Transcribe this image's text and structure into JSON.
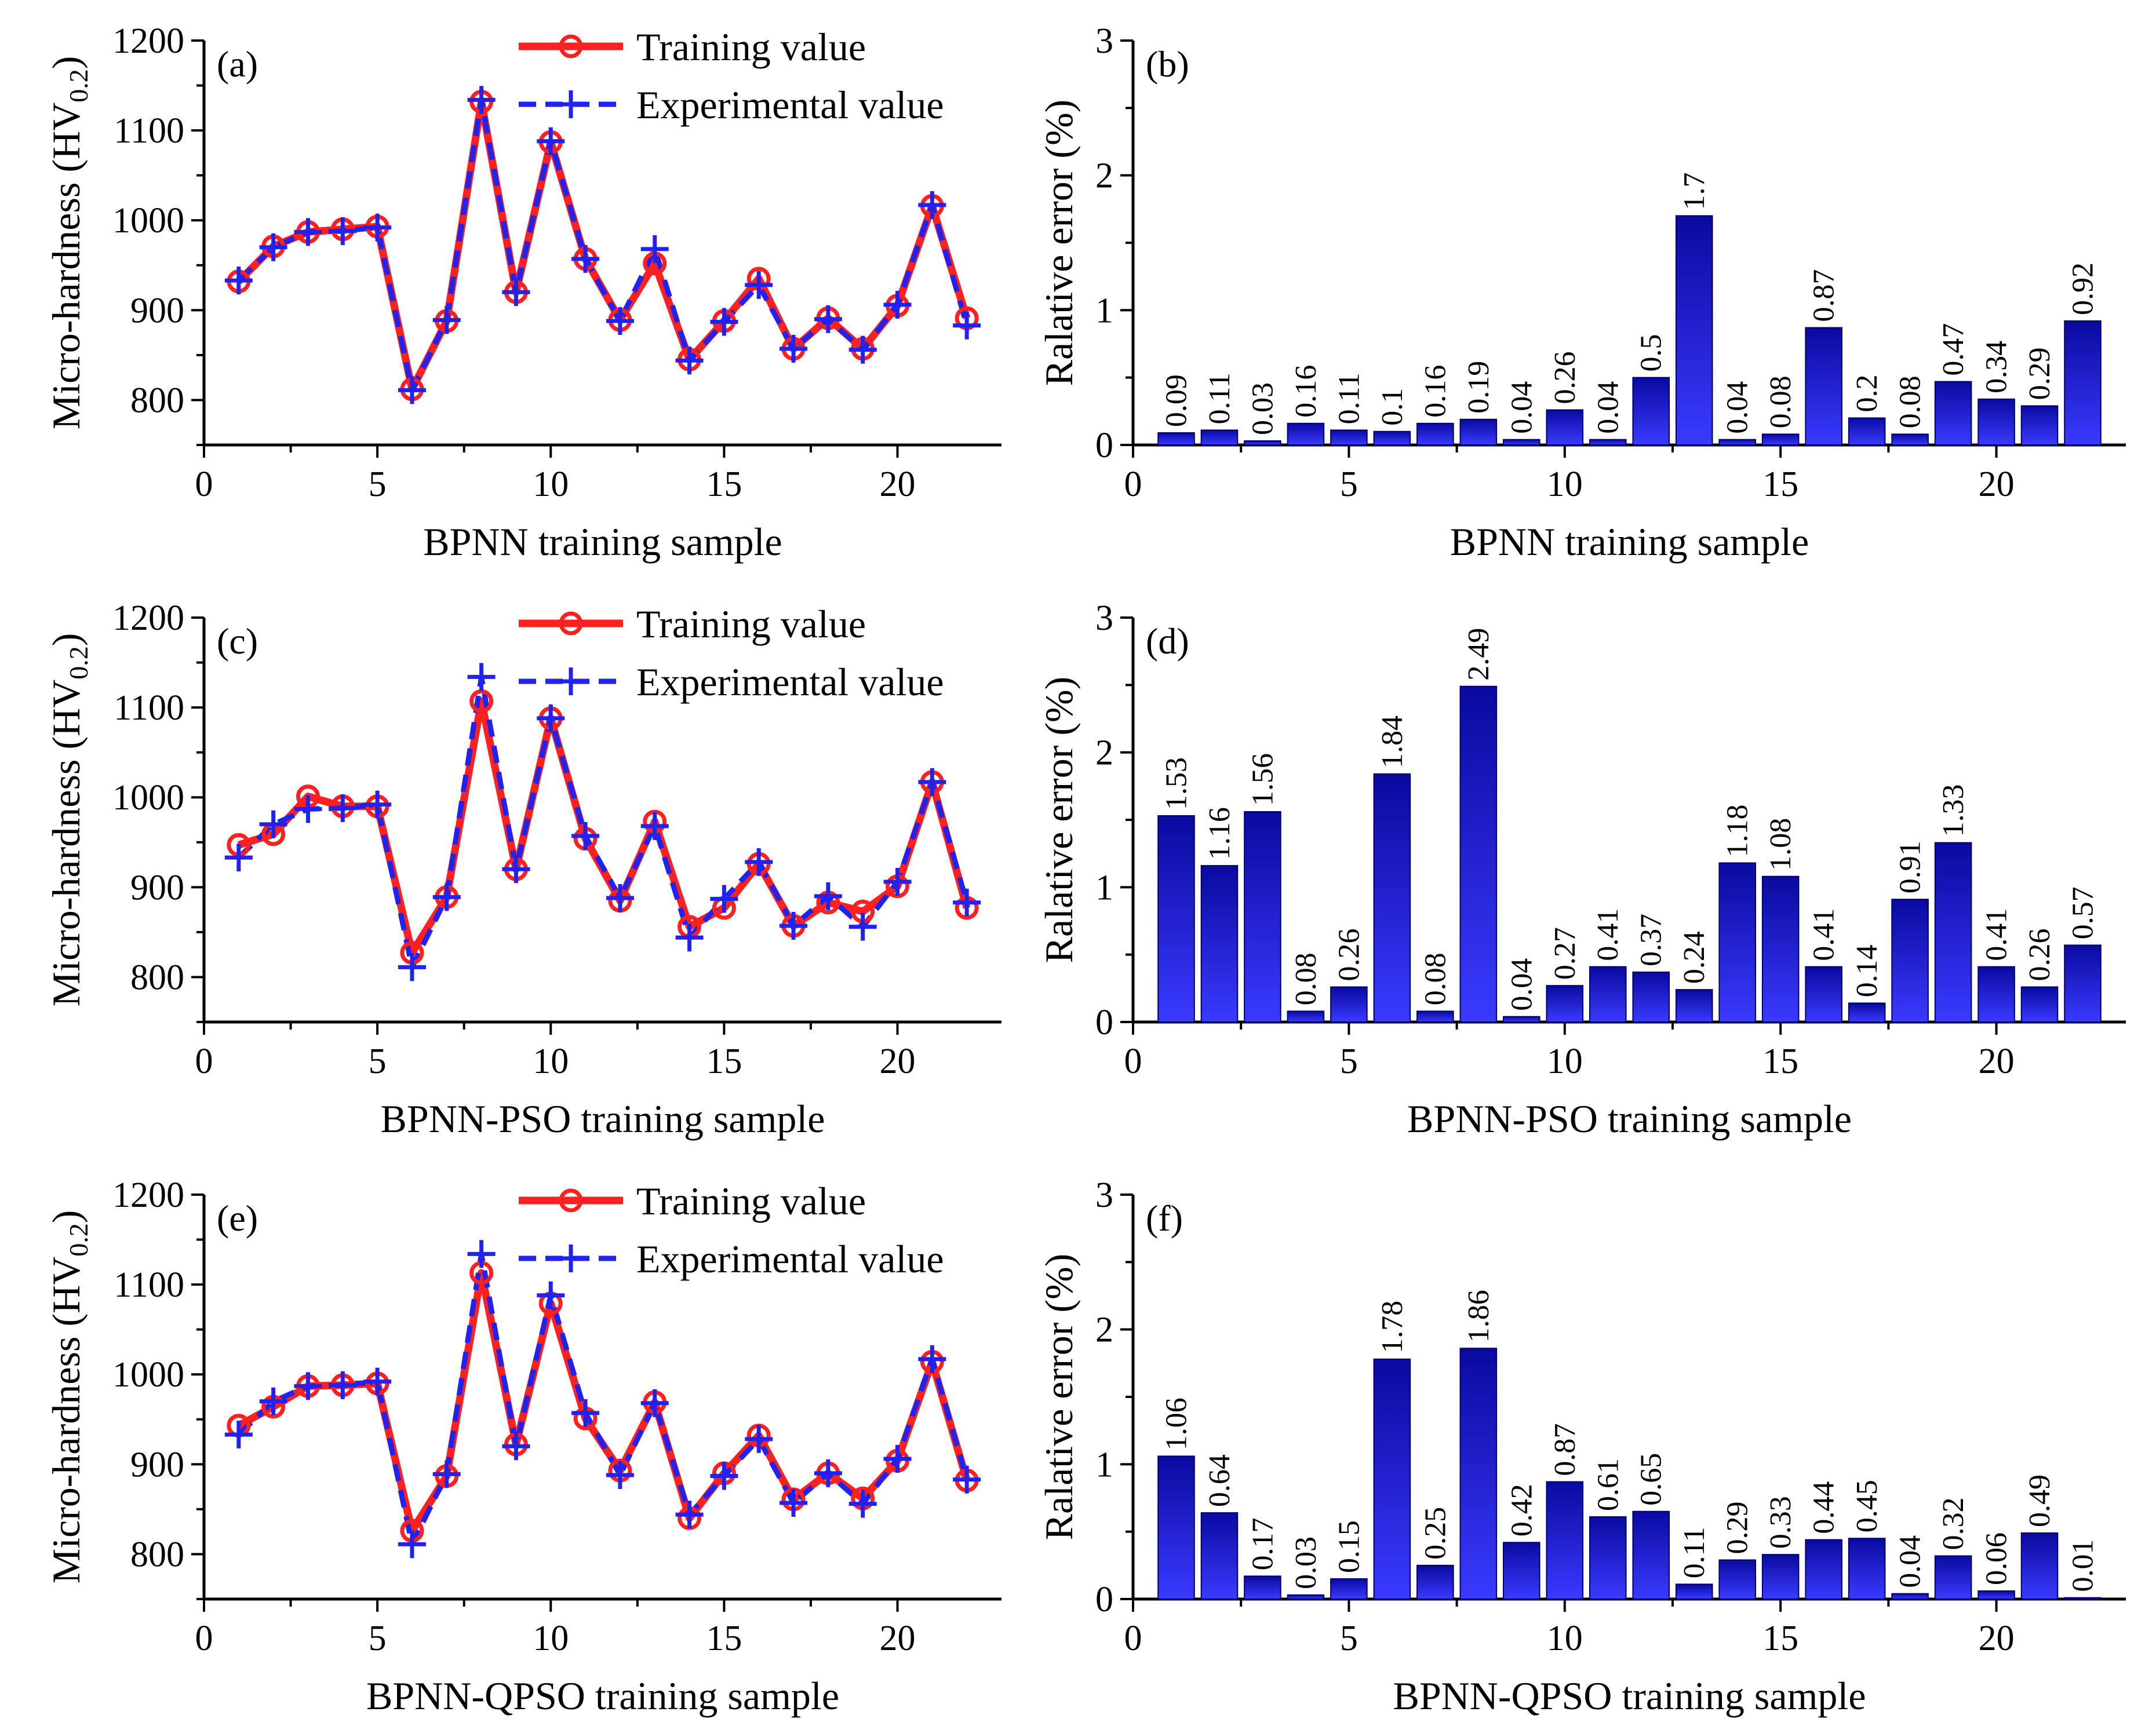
{
  "colors": {
    "training": "#ff2020",
    "experimental": "#2222ee",
    "bar_dark": "#0a0aa0",
    "bar_light": "#3a3aff",
    "axis": "#000000"
  },
  "chart_data": [
    {
      "id": "a",
      "panel": "(a)",
      "type": "line",
      "xlabel": "BPNN training sample",
      "ylabel_main": "Micro-hardness (HV",
      "ylabel_sub": "0.2",
      "ylabel_end": ")",
      "xlim": [
        0,
        23
      ],
      "ylim": [
        750,
        1200
      ],
      "xticks": [
        0,
        5,
        10,
        15,
        20
      ],
      "yticks": [
        800,
        900,
        1000,
        1100,
        1200
      ],
      "legend": [
        "Training value",
        "Experimental value"
      ],
      "x": [
        1,
        2,
        3,
        4,
        5,
        6,
        7,
        8,
        9,
        10,
        11,
        12,
        13,
        14,
        15,
        16,
        17,
        18,
        19,
        20,
        21,
        22
      ],
      "series": [
        {
          "name": "Training value",
          "values": [
            932,
            971,
            987,
            990,
            993,
            812,
            888,
            1132,
            920,
            1087,
            957,
            889,
            952,
            845,
            888,
            935,
            857,
            891,
            857,
            905,
            1016,
            891
          ]
        },
        {
          "name": "Experimental value",
          "values": [
            933,
            970,
            987,
            988,
            992,
            811,
            889,
            1134,
            920,
            1088,
            957,
            888,
            968,
            844,
            887,
            928,
            857,
            890,
            856,
            906,
            1017,
            883
          ]
        }
      ]
    },
    {
      "id": "b",
      "panel": "(b)",
      "type": "bar",
      "xlabel": "BPNN training sample",
      "ylabel": "Ralative error (%)",
      "xlim": [
        0,
        23
      ],
      "ylim": [
        0,
        3
      ],
      "xticks": [
        0,
        5,
        10,
        15,
        20
      ],
      "yticks": [
        0,
        1,
        2,
        3
      ],
      "categories": [
        1,
        2,
        3,
        4,
        5,
        6,
        7,
        8,
        9,
        10,
        11,
        12,
        13,
        14,
        15,
        16,
        17,
        18,
        19,
        20,
        21,
        22
      ],
      "values": [
        0.09,
        0.11,
        0.03,
        0.16,
        0.11,
        0.1,
        0.16,
        0.19,
        0.04,
        0.26,
        0.04,
        0.5,
        1.7,
        0.04,
        0.08,
        0.87,
        0.2,
        0.08,
        0.47,
        0.34,
        0.29,
        0.92
      ],
      "labels": [
        "0.09",
        "0.11",
        "0.03",
        "0.16",
        "0.11",
        "0.1",
        "0.16",
        "0.19",
        "0.04",
        "0.26",
        "0.04",
        "0.5",
        "1.7",
        "0.04",
        "0.08",
        "0.87",
        "0.2",
        "0.08",
        "0.47",
        "0.34",
        "0.29",
        "0.92"
      ]
    },
    {
      "id": "c",
      "panel": "(c)",
      "type": "line",
      "xlabel": "BPNN-PSO training sample",
      "ylabel_main": "Micro-hardness (HV",
      "ylabel_sub": "0.2",
      "ylabel_end": ")",
      "xlim": [
        0,
        23
      ],
      "ylim": [
        750,
        1200
      ],
      "xticks": [
        0,
        5,
        10,
        15,
        20
      ],
      "yticks": [
        800,
        900,
        1000,
        1100,
        1200
      ],
      "legend": [
        "Training value",
        "Experimental value"
      ],
      "x": [
        1,
        2,
        3,
        4,
        5,
        6,
        7,
        8,
        9,
        10,
        11,
        12,
        13,
        14,
        15,
        16,
        17,
        18,
        19,
        20,
        21,
        22
      ],
      "series": [
        {
          "name": "Training value",
          "values": [
            947,
            959,
            1001,
            990,
            990,
            827,
            889,
            1107,
            920,
            1088,
            954,
            885,
            973,
            856,
            877,
            926,
            857,
            883,
            873,
            901,
            1017,
            877
          ]
        },
        {
          "name": "Experimental value",
          "values": [
            933,
            970,
            987,
            988,
            992,
            811,
            889,
            1134,
            920,
            1088,
            957,
            888,
            968,
            844,
            887,
            928,
            857,
            890,
            856,
            906,
            1017,
            883
          ]
        }
      ]
    },
    {
      "id": "d",
      "panel": "(d)",
      "type": "bar",
      "xlabel": "BPNN-PSO training sample",
      "ylabel": "Ralative error (%)",
      "xlim": [
        0,
        23
      ],
      "ylim": [
        0,
        3
      ],
      "xticks": [
        0,
        5,
        10,
        15,
        20
      ],
      "yticks": [
        0,
        1,
        2,
        3
      ],
      "categories": [
        1,
        2,
        3,
        4,
        5,
        6,
        7,
        8,
        9,
        10,
        11,
        12,
        13,
        14,
        15,
        16,
        17,
        18,
        19,
        20,
        21,
        22
      ],
      "values": [
        1.53,
        1.16,
        1.56,
        0.08,
        0.26,
        1.84,
        0.08,
        2.49,
        0.04,
        0.27,
        0.41,
        0.37,
        0.24,
        1.18,
        1.08,
        0.41,
        0.14,
        0.91,
        1.33,
        0.41,
        0.26,
        0.57
      ],
      "labels": [
        "1.53",
        "1.16",
        "1.56",
        "0.08",
        "0.26",
        "1.84",
        "0.08",
        "2.49",
        "0.04",
        "0.27",
        "0.41",
        "0.37",
        "0.24",
        "1.18",
        "1.08",
        "0.41",
        "0.14",
        "0.91",
        "1.33",
        "0.41",
        "0.26",
        "0.57"
      ]
    },
    {
      "id": "e",
      "panel": "(e)",
      "type": "line",
      "xlabel": "BPNN-QPSO training sample",
      "ylabel_main": "Micro-hardness (HV",
      "ylabel_sub": "0.2",
      "ylabel_end": ")",
      "xlim": [
        0,
        23
      ],
      "ylim": [
        750,
        1200
      ],
      "xticks": [
        0,
        5,
        10,
        15,
        20
      ],
      "yticks": [
        800,
        900,
        1000,
        1100,
        1200
      ],
      "legend": [
        "Training value",
        "Experimental value"
      ],
      "x": [
        1,
        2,
        3,
        4,
        5,
        6,
        7,
        8,
        9,
        10,
        11,
        12,
        13,
        14,
        15,
        16,
        17,
        18,
        19,
        20,
        21,
        22
      ],
      "series": [
        {
          "name": "Training value",
          "values": [
            943,
            964,
            987,
            988,
            990,
            826,
            887,
            1113,
            922,
            1079,
            951,
            893,
            969,
            840,
            890,
            932,
            861,
            890,
            862,
            904,
            1014,
            882
          ]
        },
        {
          "name": "Experimental value",
          "values": [
            933,
            970,
            987,
            988,
            992,
            811,
            889,
            1134,
            920,
            1088,
            957,
            888,
            968,
            844,
            887,
            928,
            857,
            890,
            856,
            906,
            1017,
            883
          ]
        }
      ]
    },
    {
      "id": "f",
      "panel": "(f)",
      "type": "bar",
      "xlabel": "BPNN-QPSO training sample",
      "ylabel": "Ralative error (%)",
      "xlim": [
        0,
        23
      ],
      "ylim": [
        0,
        3
      ],
      "xticks": [
        0,
        5,
        10,
        15,
        20
      ],
      "yticks": [
        0,
        1,
        2,
        3
      ],
      "categories": [
        1,
        2,
        3,
        4,
        5,
        6,
        7,
        8,
        9,
        10,
        11,
        12,
        13,
        14,
        15,
        16,
        17,
        18,
        19,
        20,
        21,
        22
      ],
      "values": [
        1.06,
        0.64,
        0.17,
        0.03,
        0.15,
        1.78,
        0.25,
        1.86,
        0.42,
        0.87,
        0.61,
        0.65,
        0.11,
        0.29,
        0.33,
        0.44,
        0.45,
        0.04,
        0.32,
        0.06,
        0.49,
        0.01
      ],
      "labels": [
        "1.06",
        "0.64",
        "0.17",
        "0.03",
        "0.15",
        "1.78",
        "0.25",
        "1.86",
        "0.42",
        "0.87",
        "0.61",
        "0.65",
        "0.11",
        "0.29",
        "0.33",
        "0.44",
        "0.45",
        "0.04",
        "0.32",
        "0.06",
        "0.49",
        "0.01"
      ]
    }
  ]
}
